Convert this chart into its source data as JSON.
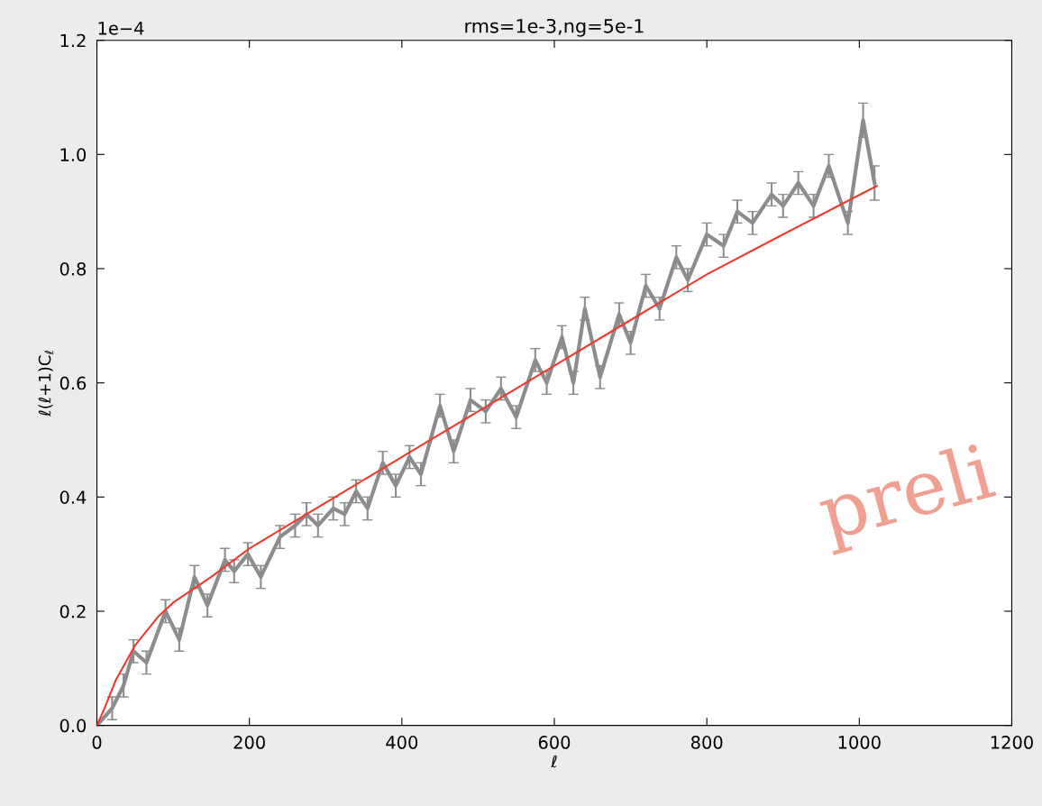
{
  "chart_data": {
    "type": "line",
    "title": "rms=1e-3,ng=5e-1",
    "xlabel": "ℓ",
    "ylabel": "ℓ(ℓ+1)C$_{ℓ}$",
    "xlim": [
      0,
      1200
    ],
    "xticks": [
      0,
      200,
      400,
      600,
      800,
      1000,
      1200
    ],
    "ylim": [
      0.0,
      1.2
    ],
    "yticks": [
      {
        "value": 0,
        "label": "0.0"
      },
      0.2,
      0.4,
      0.6,
      0.8,
      {
        "value": 1,
        "label": "1.0"
      },
      1.2
    ],
    "grid": false,
    "legend": false,
    "marker": "none",
    "line_style": "solid",
    "annotations": [
      "1e−4",
      "preli"
    ],
    "series": [
      {
        "color": "#8c8c8c",
        "x": [
          0,
          20,
          35,
          48,
          65,
          90,
          108,
          128,
          145,
          168,
          180,
          198,
          215,
          240,
          260,
          275,
          290,
          310,
          325,
          340,
          355,
          375,
          392,
          410,
          425,
          450,
          468,
          490,
          510,
          530,
          550,
          575,
          590,
          610,
          625,
          640,
          660,
          685,
          700,
          720,
          738,
          760,
          775,
          800,
          822,
          840,
          860,
          885,
          900,
          920,
          940,
          960,
          985,
          1005,
          1020
        ],
        "values": [
          0.0,
          0.03,
          0.07,
          0.13,
          0.11,
          0.2,
          0.15,
          0.26,
          0.21,
          0.29,
          0.27,
          0.3,
          0.26,
          0.33,
          0.35,
          0.37,
          0.35,
          0.38,
          0.37,
          0.41,
          0.38,
          0.46,
          0.42,
          0.47,
          0.44,
          0.56,
          0.48,
          0.57,
          0.55,
          0.59,
          0.54,
          0.64,
          0.6,
          0.68,
          0.6,
          0.73,
          0.61,
          0.72,
          0.67,
          0.77,
          0.73,
          0.82,
          0.78,
          0.86,
          0.84,
          0.9,
          0.88,
          0.93,
          0.91,
          0.95,
          0.91,
          0.98,
          0.88,
          1.06,
          0.95
        ],
        "errors": [
          null,
          0.02,
          0.02,
          0.02,
          0.02,
          0.02,
          0.02,
          0.02,
          0.02,
          0.02,
          0.02,
          0.02,
          0.02,
          0.02,
          0.02,
          0.02,
          0.02,
          0.02,
          0.02,
          0.02,
          0.02,
          0.02,
          0.02,
          0.02,
          0.02,
          0.02,
          0.02,
          0.02,
          0.02,
          0.02,
          0.02,
          0.02,
          0.02,
          0.02,
          0.02,
          0.02,
          0.02,
          0.02,
          0.02,
          0.02,
          0.02,
          0.02,
          0.02,
          0.02,
          0.02,
          0.02,
          0.02,
          0.02,
          0.02,
          0.02,
          0.02,
          0.02,
          0.02,
          0.03,
          0.03
        ]
      },
      {
        "color": "#ee3a2c",
        "x": [
          0,
          10,
          25,
          50,
          80,
          100,
          150,
          200,
          300,
          400,
          500,
          600,
          700,
          800,
          900,
          1023
        ],
        "values": [
          0.0,
          0.03,
          0.08,
          0.14,
          0.19,
          0.215,
          0.26,
          0.31,
          0.39,
          0.47,
          0.55,
          0.63,
          0.71,
          0.79,
          0.86,
          0.945
        ]
      }
    ]
  }
}
